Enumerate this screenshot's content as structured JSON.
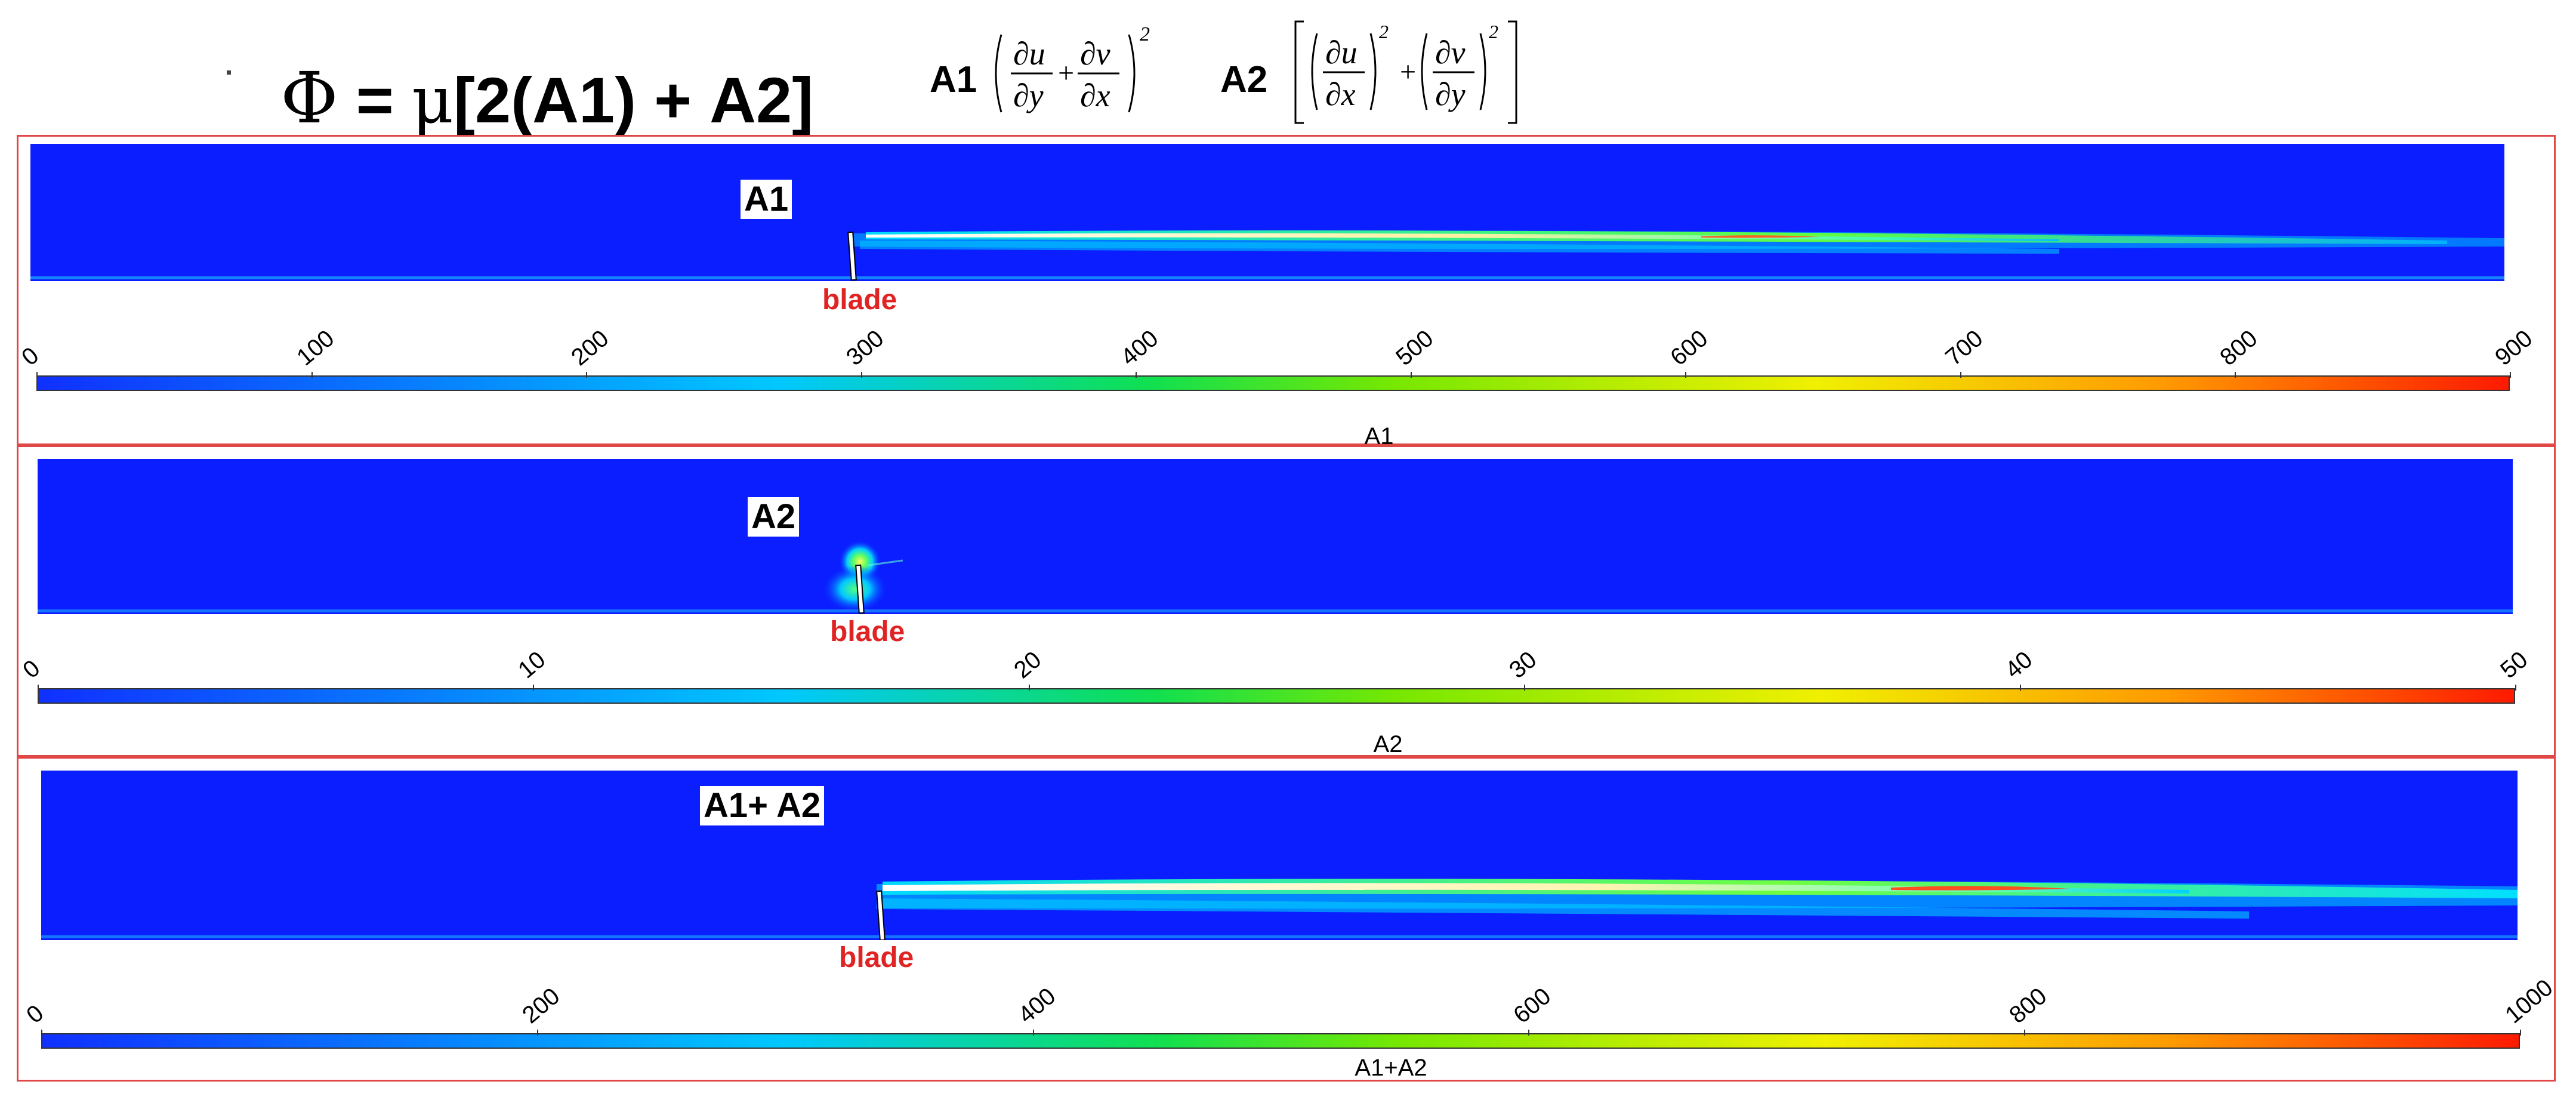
{
  "header": {
    "formula": {
      "phi": "Φ",
      "eq": " = ",
      "mu": "μ",
      "rest": "[2(A1) + A2]"
    },
    "a1_label": "A1",
    "a2_label": "A2",
    "a1_term": {
      "du": "∂u",
      "dy": "∂y",
      "dv": "∂v",
      "dx": "∂x",
      "plus": "+",
      "sq": "2"
    },
    "a2_term": {
      "du": "∂u",
      "dx": "∂x",
      "dv": "∂v",
      "dy": "∂y",
      "plus": "+",
      "sq": "2"
    }
  },
  "panels": [
    {
      "label": "A1",
      "blade_label": "blade",
      "colorbar_title": "A1",
      "colorbar_ticks": [
        "0",
        "100",
        "200",
        "300",
        "400",
        "500",
        "600",
        "700",
        "800",
        "900"
      ],
      "range": [
        0,
        900
      ]
    },
    {
      "label": "A2",
      "blade_label": "blade",
      "colorbar_title": "A2",
      "colorbar_ticks": [
        "0",
        "10",
        "20",
        "30",
        "40",
        "50"
      ],
      "range": [
        0,
        50
      ]
    },
    {
      "label": "A1+ A2",
      "blade_label": "blade",
      "colorbar_title": "A1+A2",
      "colorbar_ticks": [
        "0",
        "200",
        "400",
        "600",
        "800",
        "1000"
      ],
      "range": [
        0,
        1000
      ]
    }
  ],
  "colors": {
    "field_background": "#0a1eff",
    "panel_border": "#e04848",
    "blade_label": "#e02424",
    "colormap": [
      "#1030ff",
      "#00c8ff",
      "#10e050",
      "#78e800",
      "#f0f000",
      "#ff9a00",
      "#ff1a00"
    ]
  }
}
